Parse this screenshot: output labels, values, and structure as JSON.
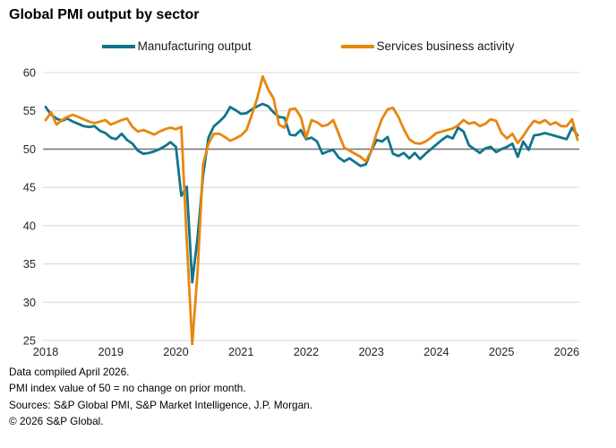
{
  "title": "Global PMI output by sector",
  "legend": {
    "items": [
      {
        "label": "Manufacturing output",
        "color": "#10758b"
      },
      {
        "label": "Services business activity",
        "color": "#e8860e"
      }
    ]
  },
  "footnotes": [
    "Data compiled April 2026.",
    "PMI index value of 50 = no change on prior month.",
    "Sources: S&P Global PMI, S&P Market Intelligence, J.P. Morgan.",
    "© 2026 S&P Global."
  ],
  "chart_data": {
    "type": "line",
    "title": "Global PMI output by sector",
    "x_frequency": "monthly",
    "x_start": "2018-01",
    "x_end": "2026-03",
    "x_tick_labels": [
      "2018",
      "2019",
      "2020",
      "2021",
      "2022",
      "2023",
      "2024",
      "2025",
      "2026"
    ],
    "xlabel": "",
    "ylabel": "",
    "ylim": [
      25,
      60
    ],
    "y_ticks": [
      25,
      30,
      35,
      40,
      45,
      50,
      55,
      60
    ],
    "baseline": 50,
    "grid": true,
    "legend_position": "top",
    "grid_color": "#d9d9d9",
    "baseline_color": "#7a7a7a",
    "series": [
      {
        "name": "Manufacturing output",
        "color": "#10758b",
        "values": [
          55.5,
          54.5,
          54.0,
          53.7,
          54.0,
          53.6,
          53.3,
          53.0,
          52.9,
          53.0,
          52.4,
          52.1,
          51.5,
          51.3,
          52.0,
          51.2,
          50.7,
          49.8,
          49.4,
          49.5,
          49.7,
          50.0,
          50.4,
          50.9,
          50.3,
          43.9,
          45.1,
          32.6,
          38.5,
          46.5,
          51.5,
          53.0,
          53.6,
          54.3,
          55.5,
          55.1,
          54.6,
          54.7,
          55.2,
          55.6,
          55.9,
          55.6,
          54.8,
          54.2,
          54.1,
          51.9,
          51.8,
          52.5,
          51.3,
          51.5,
          51.0,
          49.4,
          49.7,
          49.9,
          48.9,
          48.4,
          48.8,
          48.3,
          47.8,
          48.0,
          49.8,
          51.2,
          51.0,
          51.6,
          49.4,
          49.1,
          49.5,
          48.8,
          49.5,
          48.7,
          49.4,
          50.0,
          50.6,
          51.2,
          51.7,
          51.4,
          52.8,
          52.3,
          50.5,
          50.0,
          49.5,
          50.1,
          50.3,
          49.6,
          50.0,
          50.3,
          50.7,
          49.0,
          51.0,
          49.9,
          51.8,
          51.9,
          52.1,
          51.9,
          51.7,
          51.5,
          51.3,
          52.8,
          51.8
        ]
      },
      {
        "name": "Services business activity",
        "color": "#e8860e",
        "values": [
          53.8,
          54.8,
          53.2,
          53.8,
          54.2,
          54.5,
          54.2,
          53.9,
          53.6,
          53.4,
          53.6,
          53.8,
          53.2,
          53.5,
          53.8,
          54.0,
          52.9,
          52.3,
          52.5,
          52.2,
          51.9,
          52.3,
          52.6,
          52.8,
          52.6,
          52.9,
          38.0,
          24.5,
          34.0,
          48.0,
          50.7,
          52.0,
          52.0,
          51.6,
          51.1,
          51.4,
          51.8,
          52.5,
          54.5,
          56.7,
          59.5,
          57.8,
          56.6,
          53.2,
          52.8,
          55.2,
          55.3,
          54.2,
          51.5,
          53.8,
          53.5,
          53.0,
          53.2,
          53.8,
          52.0,
          50.2,
          49.8,
          49.4,
          49.0,
          48.4,
          49.8,
          52.1,
          54.0,
          55.2,
          55.4,
          54.2,
          52.6,
          51.3,
          50.8,
          50.7,
          51.0,
          51.5,
          52.1,
          52.3,
          52.5,
          52.7,
          53.1,
          53.8,
          53.3,
          53.5,
          53.0,
          53.3,
          53.9,
          53.7,
          52.1,
          51.4,
          52.0,
          50.8,
          51.7,
          52.8,
          53.7,
          53.4,
          53.8,
          53.2,
          53.5,
          53.0,
          53.0,
          53.9,
          51.2
        ]
      }
    ]
  }
}
